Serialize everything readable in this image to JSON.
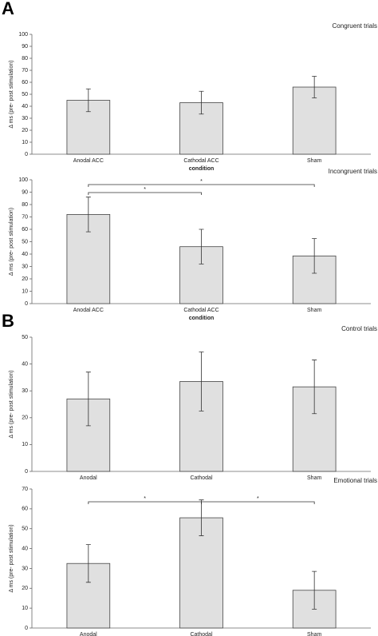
{
  "chart_data": [
    {
      "type": "bar",
      "panel": "A",
      "title": "Congruent trials",
      "x_label": "condition",
      "y_label": "Δ ms (pre- post stimulation)",
      "categories": [
        "Anodal ACC",
        "Cathodal ACC",
        "Sham"
      ],
      "values": [
        45,
        43,
        56
      ],
      "errors": [
        9.5,
        9.5,
        9
      ],
      "color": "#e0e0e0",
      "ylim": [
        0,
        100
      ],
      "yticks": [
        0,
        10,
        20,
        30,
        40,
        50,
        60,
        70,
        80,
        90,
        100
      ]
    },
    {
      "type": "bar",
      "title": "Incongruent trials",
      "x_label": "condition",
      "y_label": "Δ ms (pre- post stimulation)",
      "categories": [
        "Anodal ACC",
        "Cathodal ACC",
        "Sham"
      ],
      "values": [
        72,
        46,
        38.5
      ],
      "errors": [
        14,
        14,
        14
      ],
      "color": "#e0e0e0",
      "ylim": [
        0,
        100
      ],
      "yticks": [
        0,
        10,
        20,
        30,
        40,
        50,
        60,
        70,
        80,
        90,
        100
      ],
      "comparisons": [
        {
          "between": [
            "Anodal ACC",
            "Cathodal ACC"
          ],
          "label": "*"
        },
        {
          "between": [
            "Anodal ACC",
            "Sham"
          ],
          "label": "*"
        }
      ]
    },
    {
      "type": "bar",
      "panel": "B",
      "title": "Control trials",
      "y_label": "Δ ms (pre- post stimulation)",
      "categories": [
        "Anodal",
        "Cathodal",
        "Sham"
      ],
      "values": [
        27,
        33.5,
        31.5
      ],
      "errors": [
        10,
        11,
        10
      ],
      "color": "#e0e0e0",
      "ylim": [
        0,
        50
      ],
      "yticks": [
        0,
        10,
        20,
        30,
        40,
        50
      ]
    },
    {
      "type": "bar",
      "title": "Emotional trials",
      "y_label": "Δ ms (pre- post stimulation)",
      "categories": [
        "Anodal",
        "Cathodal",
        "Sham"
      ],
      "values": [
        32.5,
        55.5,
        19
      ],
      "errors": [
        9.5,
        9,
        9.5
      ],
      "color": "#e0e0e0",
      "ylim": [
        0,
        70
      ],
      "yticks": [
        0,
        10,
        20,
        30,
        40,
        50,
        60,
        70
      ],
      "comparisons": [
        {
          "between": [
            "Anodal",
            "Cathodal"
          ],
          "label": "*"
        },
        {
          "between": [
            "Cathodal",
            "Sham"
          ],
          "label": "*"
        }
      ]
    }
  ]
}
